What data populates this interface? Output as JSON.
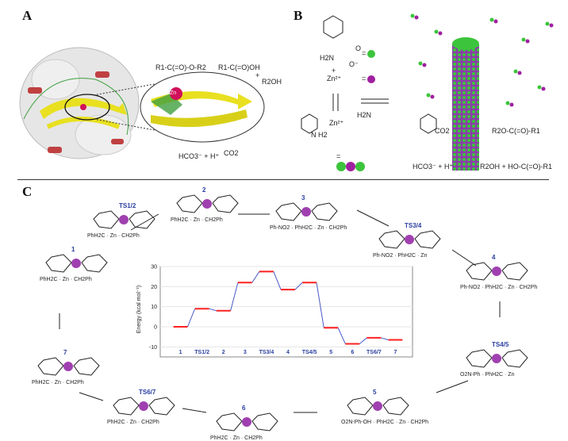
{
  "panels": {
    "a": {
      "label": "A",
      "ester": "R1-C(=O)-O-R2",
      "acid": "R1-C(=O)OH",
      "plus1": "+",
      "alcohol": "R2OH",
      "zinc": "Zn",
      "bicarbonate": "HCO3⁻ + H⁺",
      "co2": "CO2",
      "colors": {
        "sheet": "#e8e020",
        "helix": "#c04040",
        "zinc": "#d0105a",
        "loop": "#40a040"
      }
    },
    "b": {
      "label": "B",
      "amino_group": "H2N",
      "carbonyl": "O",
      "anion": "O⁻",
      "equals1": "=",
      "plus": "+",
      "zn_ion": "Zn²⁺",
      "equals2": "=",
      "complex_zn": "Zn²⁺",
      "complex_nh": "H2N",
      "complex_nh2": "N H2",
      "equals3": "=",
      "co2": "CO2",
      "ester": "R2O-C(=O)-R1",
      "bicarbonate": "HCO3⁻ + H⁺",
      "products": "R2OH + HO-C(=O)-R1",
      "colors": {
        "phe": "#3cc43c",
        "zn": "#a020a0"
      }
    },
    "c": {
      "label": "C",
      "species": [
        {
          "id": "1",
          "label": "1",
          "text": "PhH2C · Zn · CH2Ph"
        },
        {
          "id": "ts12",
          "label": "TS1/2",
          "text": "PhH2C · Zn · CH2Ph"
        },
        {
          "id": "2",
          "label": "2",
          "text": "PhH2C · Zn · CH2Ph"
        },
        {
          "id": "3",
          "label": "3",
          "text": "Ph-NO2 · PhH2C · Zn · CH2Ph"
        },
        {
          "id": "ts34",
          "label": "TS3/4",
          "text": "Ph-NO2 · PhH2C · Zn"
        },
        {
          "id": "4",
          "label": "4",
          "text": "Ph-NO2 · PhH2C · Zn · CH2Ph"
        },
        {
          "id": "ts45",
          "label": "TS4/5",
          "text": "O2N-Ph · PhH2C · Zn"
        },
        {
          "id": "5",
          "label": "5",
          "text": "O2N-Ph-OH · PhH2C · Zn · CH2Ph"
        },
        {
          "id": "6",
          "label": "6",
          "text": "PhH2C · Zn · CH2Ph"
        },
        {
          "id": "ts67",
          "label": "TS6/7",
          "text": "PhH2C · Zn · CH2Ph"
        },
        {
          "id": "7",
          "label": "7",
          "text": "PhH2C · Zn · CH2Ph"
        }
      ]
    }
  },
  "chart_data": {
    "type": "line",
    "title": "",
    "xlabel": "",
    "ylabel": "Energy (kcal mol⁻¹)",
    "ylim": [
      -15,
      30
    ],
    "yticks": [
      -10,
      0,
      10,
      20,
      30
    ],
    "grid": true,
    "categories": [
      "1",
      "TS1/2",
      "2",
      "3",
      "TS3/4",
      "4",
      "TS4/5",
      "5",
      "6",
      "TS6/7",
      "7"
    ],
    "values": [
      0,
      9,
      8,
      22,
      27.5,
      18.5,
      22,
      -0.5,
      -8.5,
      -5.5,
      -6.5
    ],
    "colors": {
      "level": "#ff2020",
      "connector": "#4a5ac8",
      "label": "#2a3fa0"
    }
  }
}
